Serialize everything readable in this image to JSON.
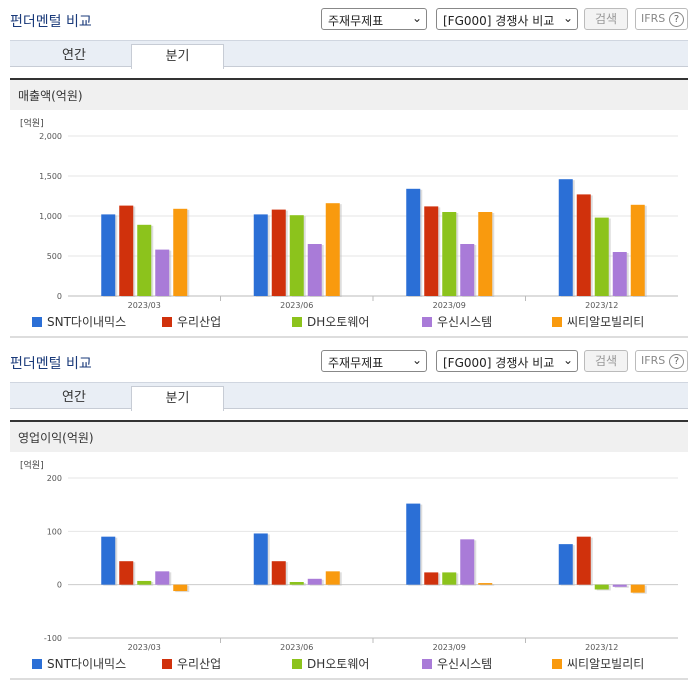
{
  "panels": [
    {
      "title": "펀더멘털 비교",
      "select_statement": "주재무제표",
      "select_compare": "[FG000] 경쟁사 비교",
      "search_label": "검색",
      "ifrs_label": "IFRS",
      "help_glyph": "?",
      "tabs": [
        "연간",
        "분기"
      ],
      "active_tab": "분기",
      "chart_title": "매출액(억원)",
      "unit_label": "[억원]",
      "chart_data": {
        "type": "bar",
        "title": "매출액(억원)",
        "ylabel": "[억원]",
        "categories": [
          "2023/03",
          "2023/06",
          "2023/09",
          "2023/12"
        ],
        "ylim": [
          0,
          2000
        ],
        "yticks": [
          "2,000",
          "1,500",
          "1,000",
          "500",
          "0"
        ],
        "ytick_values": [
          2000,
          1500,
          1000,
          500,
          0
        ],
        "series": [
          {
            "name": "SNT다이내믹스",
            "color": "#2b6fd6",
            "values": [
              1020,
              1020,
              1340,
              1460
            ]
          },
          {
            "name": "우리산업",
            "color": "#d0310c",
            "values": [
              1130,
              1080,
              1120,
              1270
            ]
          },
          {
            "name": "DH오토웨어",
            "color": "#8cc31c",
            "values": [
              890,
              1010,
              1050,
              980
            ]
          },
          {
            "name": "우신시스템",
            "color": "#a97bd8",
            "values": [
              580,
              650,
              650,
              550
            ]
          },
          {
            "name": "씨티알모빌리티",
            "color": "#f99a0e",
            "values": [
              1090,
              1160,
              1050,
              1140
            ]
          }
        ]
      }
    },
    {
      "title": "펀더멘털 비교",
      "select_statement": "주재무제표",
      "select_compare": "[FG000] 경쟁사 비교",
      "search_label": "검색",
      "ifrs_label": "IFRS",
      "help_glyph": "?",
      "tabs": [
        "연간",
        "분기"
      ],
      "active_tab": "분기",
      "chart_title": "영업이익(억원)",
      "unit_label": "[억원]",
      "chart_data": {
        "type": "bar",
        "title": "영업이익(억원)",
        "ylabel": "[억원]",
        "categories": [
          "2023/03",
          "2023/06",
          "2023/09",
          "2023/12"
        ],
        "ylim": [
          -100,
          200
        ],
        "yticks": [
          "200",
          "100",
          "0",
          "-100"
        ],
        "ytick_values": [
          200,
          100,
          0,
          -100
        ],
        "series": [
          {
            "name": "SNT다이내믹스",
            "color": "#2b6fd6",
            "values": [
              90,
              96,
              152,
              76
            ]
          },
          {
            "name": "우리산업",
            "color": "#d0310c",
            "values": [
              44,
              44,
              23,
              90
            ]
          },
          {
            "name": "DH오토웨어",
            "color": "#8cc31c",
            "values": [
              7,
              5,
              23,
              -9
            ]
          },
          {
            "name": "우신시스템",
            "color": "#a97bd8",
            "values": [
              25,
              11,
              85,
              -4
            ]
          },
          {
            "name": "씨티알모빌리티",
            "color": "#f99a0e",
            "values": [
              -12,
              25,
              3,
              -15
            ]
          }
        ]
      }
    }
  ]
}
